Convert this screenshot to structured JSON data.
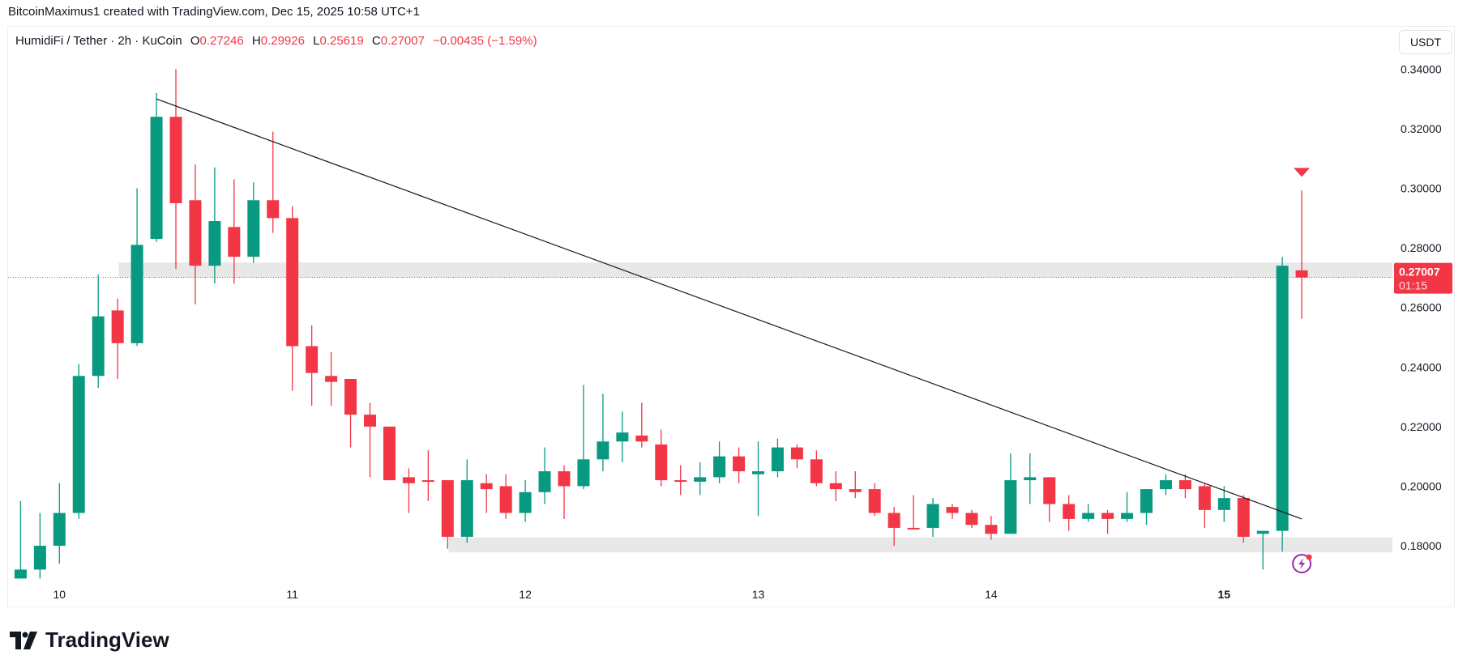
{
  "credit": "BitcoinMaximus1 created with TradingView.com, Dec 15, 2025 10:58 UTC+1",
  "legend": {
    "symbol": "HumidiFi / Tether · 2h · KuCoin",
    "o_label": "O",
    "o": "0.27246",
    "h_label": "H",
    "h": "0.29926",
    "l_label": "L",
    "l": "0.25619",
    "c_label": "C",
    "c": "0.27007",
    "change": "−0.00435 (−1.59%)"
  },
  "currency": "USDT",
  "last_price": {
    "price": "0.27007",
    "countdown": "01:15"
  },
  "logo_text": "TradingView",
  "colors": {
    "up": "#089981",
    "down": "#f23645",
    "zone": "#e6e6e6",
    "trendline": "#131722",
    "signal": "#9c27b0"
  },
  "chart_data": {
    "type": "candlestick",
    "title": "HumidiFi / Tether · 2h · KuCoin",
    "ylim": [
      0.167,
      0.345
    ],
    "yticks": [
      "0.34000",
      "0.32000",
      "0.30000",
      "0.28000",
      "0.26000",
      "0.24000",
      "0.22000",
      "0.20000",
      "0.18000"
    ],
    "xticks": [
      {
        "index": 2,
        "label": "10"
      },
      {
        "index": 14,
        "label": "11"
      },
      {
        "index": 26,
        "label": "12"
      },
      {
        "index": 38,
        "label": "13"
      },
      {
        "index": 50,
        "label": "14"
      },
      {
        "index": 62,
        "label": "15"
      }
    ],
    "candles": [
      [
        0.169,
        0.195,
        0.169,
        0.172
      ],
      [
        0.172,
        0.191,
        0.169,
        0.18
      ],
      [
        0.18,
        0.201,
        0.174,
        0.191
      ],
      [
        0.191,
        0.241,
        0.189,
        0.237
      ],
      [
        0.237,
        0.271,
        0.233,
        0.257
      ],
      [
        0.259,
        0.263,
        0.236,
        0.248
      ],
      [
        0.248,
        0.3,
        0.247,
        0.281
      ],
      [
        0.283,
        0.332,
        0.282,
        0.324
      ],
      [
        0.324,
        0.34,
        0.273,
        0.295
      ],
      [
        0.296,
        0.308,
        0.261,
        0.274
      ],
      [
        0.274,
        0.307,
        0.268,
        0.289
      ],
      [
        0.287,
        0.303,
        0.268,
        0.277
      ],
      [
        0.277,
        0.302,
        0.275,
        0.296
      ],
      [
        0.296,
        0.319,
        0.285,
        0.29
      ],
      [
        0.29,
        0.294,
        0.232,
        0.247
      ],
      [
        0.247,
        0.254,
        0.227,
        0.238
      ],
      [
        0.237,
        0.245,
        0.227,
        0.235
      ],
      [
        0.236,
        0.236,
        0.213,
        0.224
      ],
      [
        0.224,
        0.228,
        0.203,
        0.22
      ],
      [
        0.22,
        0.22,
        0.202,
        0.202
      ],
      [
        0.203,
        0.206,
        0.191,
        0.201
      ],
      [
        0.202,
        0.212,
        0.195,
        0.2019
      ],
      [
        0.202,
        0.202,
        0.179,
        0.183
      ],
      [
        0.183,
        0.209,
        0.181,
        0.202
      ],
      [
        0.201,
        0.204,
        0.191,
        0.199
      ],
      [
        0.2,
        0.204,
        0.189,
        0.191
      ],
      [
        0.191,
        0.202,
        0.188,
        0.198
      ],
      [
        0.198,
        0.213,
        0.194,
        0.205
      ],
      [
        0.205,
        0.207,
        0.189,
        0.2
      ],
      [
        0.2,
        0.234,
        0.199,
        0.209
      ],
      [
        0.209,
        0.231,
        0.205,
        0.215
      ],
      [
        0.215,
        0.225,
        0.208,
        0.218
      ],
      [
        0.217,
        0.228,
        0.213,
        0.215
      ],
      [
        0.214,
        0.219,
        0.2,
        0.202
      ],
      [
        0.202,
        0.207,
        0.197,
        0.2019
      ],
      [
        0.2015,
        0.208,
        0.197,
        0.203
      ],
      [
        0.203,
        0.215,
        0.201,
        0.21
      ],
      [
        0.21,
        0.213,
        0.201,
        0.205
      ],
      [
        0.204,
        0.215,
        0.19,
        0.205
      ],
      [
        0.205,
        0.216,
        0.203,
        0.213
      ],
      [
        0.213,
        0.214,
        0.206,
        0.209
      ],
      [
        0.209,
        0.212,
        0.2,
        0.201
      ],
      [
        0.201,
        0.205,
        0.195,
        0.199
      ],
      [
        0.199,
        0.205,
        0.196,
        0.198
      ],
      [
        0.199,
        0.201,
        0.19,
        0.191
      ],
      [
        0.191,
        0.193,
        0.18,
        0.186
      ],
      [
        0.186,
        0.197,
        0.186,
        0.1859
      ],
      [
        0.186,
        0.196,
        0.183,
        0.194
      ],
      [
        0.193,
        0.194,
        0.189,
        0.191
      ],
      [
        0.191,
        0.192,
        0.186,
        0.187
      ],
      [
        0.187,
        0.19,
        0.182,
        0.184
      ],
      [
        0.184,
        0.211,
        0.184,
        0.202
      ],
      [
        0.202,
        0.211,
        0.194,
        0.203
      ],
      [
        0.203,
        0.203,
        0.188,
        0.194
      ],
      [
        0.194,
        0.197,
        0.185,
        0.189
      ],
      [
        0.189,
        0.194,
        0.188,
        0.191
      ],
      [
        0.191,
        0.192,
        0.184,
        0.189
      ],
      [
        0.189,
        0.198,
        0.188,
        0.191
      ],
      [
        0.191,
        0.199,
        0.187,
        0.199
      ],
      [
        0.199,
        0.204,
        0.197,
        0.202
      ],
      [
        0.202,
        0.204,
        0.196,
        0.199
      ],
      [
        0.2,
        0.201,
        0.186,
        0.192
      ],
      [
        0.192,
        0.2,
        0.188,
        0.196
      ],
      [
        0.196,
        0.197,
        0.181,
        0.183
      ],
      [
        0.184,
        0.185,
        0.172,
        0.185
      ],
      [
        0.185,
        0.277,
        0.178,
        0.274
      ],
      [
        0.27246,
        0.29926,
        0.25619,
        0.27007
      ]
    ],
    "trendline": {
      "from": {
        "index": 7,
        "price": 0.33
      },
      "to": {
        "index": 66,
        "price": 0.189
      }
    },
    "zones": [
      {
        "from_index": 5.05,
        "top": 0.2751,
        "bottom": 0.27
      },
      {
        "from_index": 22.05,
        "top": 0.1828,
        "bottom": 0.1778
      }
    ],
    "sell_marker": {
      "index": 66,
      "price": 0.3055
    },
    "signal_icon": {
      "index": 66,
      "price": 0.174
    }
  }
}
